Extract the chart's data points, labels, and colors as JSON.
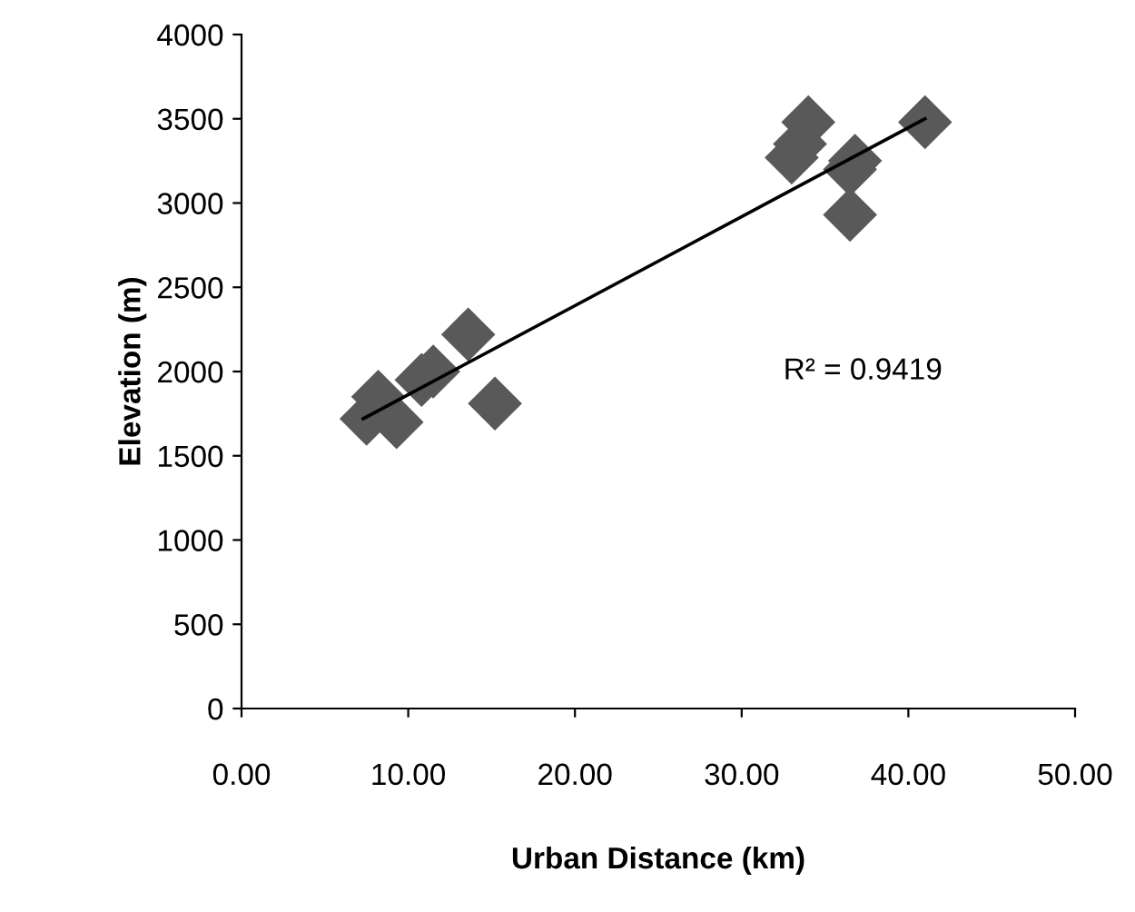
{
  "chart_data": {
    "type": "scatter",
    "xlabel": "Urban Distance (km)",
    "ylabel": "Elevation (m)",
    "xlim": [
      0,
      50
    ],
    "ylim": [
      0,
      4000
    ],
    "xticks": [
      {
        "value": 0,
        "label": "0.00"
      },
      {
        "value": 10,
        "label": "10.00"
      },
      {
        "value": 20,
        "label": "20.00"
      },
      {
        "value": 30,
        "label": "30.00"
      },
      {
        "value": 40,
        "label": "40.00"
      },
      {
        "value": 50,
        "label": "50.00"
      }
    ],
    "yticks": [
      0,
      500,
      1000,
      1500,
      2000,
      2500,
      3000,
      3500,
      4000
    ],
    "grid": false,
    "legend": false,
    "annotations": [
      "R² = 0.9419"
    ],
    "series": [
      {
        "marker": "diamond",
        "color": "#595959",
        "x": [
          7.5,
          8.2,
          9.3,
          10.8,
          11.5,
          13.6,
          15.2,
          33.0,
          33.5,
          34.0,
          36.5,
          36.8,
          36.5,
          41.0
        ],
        "values": [
          1720,
          1850,
          1700,
          1950,
          2000,
          2220,
          1810,
          3270,
          3350,
          3480,
          2930,
          3250,
          3200,
          3480
        ]
      },
      {
        "type": "line",
        "color": "#000000",
        "x": [
          7.3,
          41.0
        ],
        "values": [
          1720,
          3500
        ]
      }
    ]
  }
}
